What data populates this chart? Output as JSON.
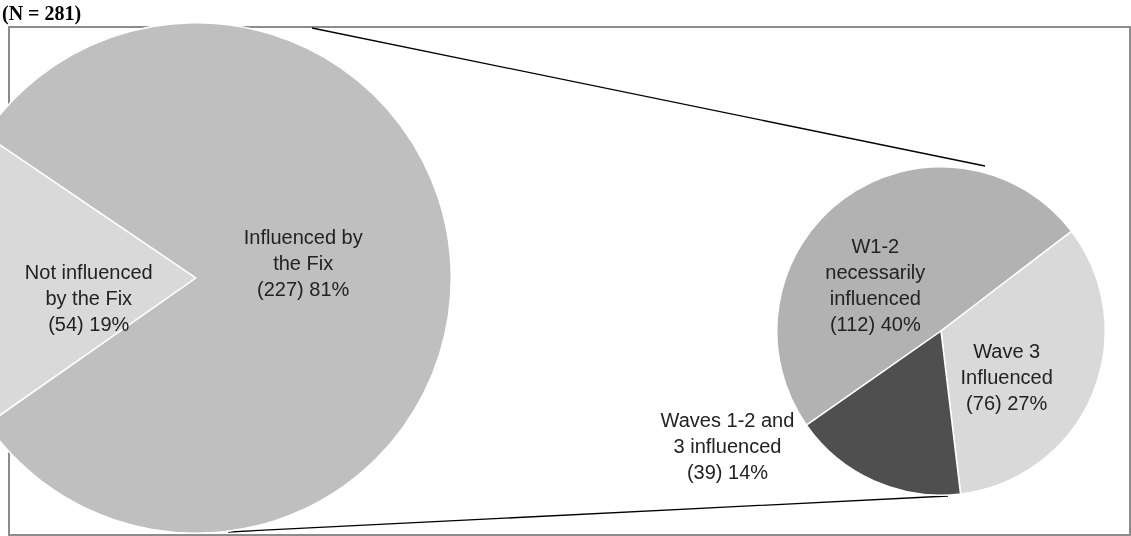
{
  "chart_data": [
    {
      "type": "pie",
      "title": "(N = 281)",
      "categories": [
        "Not influenced by the Fix",
        "Influenced by the Fix"
      ],
      "values": [
        54,
        227
      ],
      "value_labels": [
        "(54) 19%",
        "(227) 81%"
      ],
      "colors": [
        "#d9d9d9",
        "#bfbfbf"
      ]
    },
    {
      "type": "pie",
      "categories": [
        "W1-2 necessarily influenced",
        "Wave 3 Influenced",
        "Waves 1-2 and 3 influenced"
      ],
      "values": [
        112,
        76,
        39
      ],
      "value_labels": [
        "(112) 40%",
        "(76) 27%",
        "(39) 14%"
      ],
      "colors": [
        "#b2b2b2",
        "#d9d9d9",
        "#4f4f4f"
      ]
    }
  ]
}
